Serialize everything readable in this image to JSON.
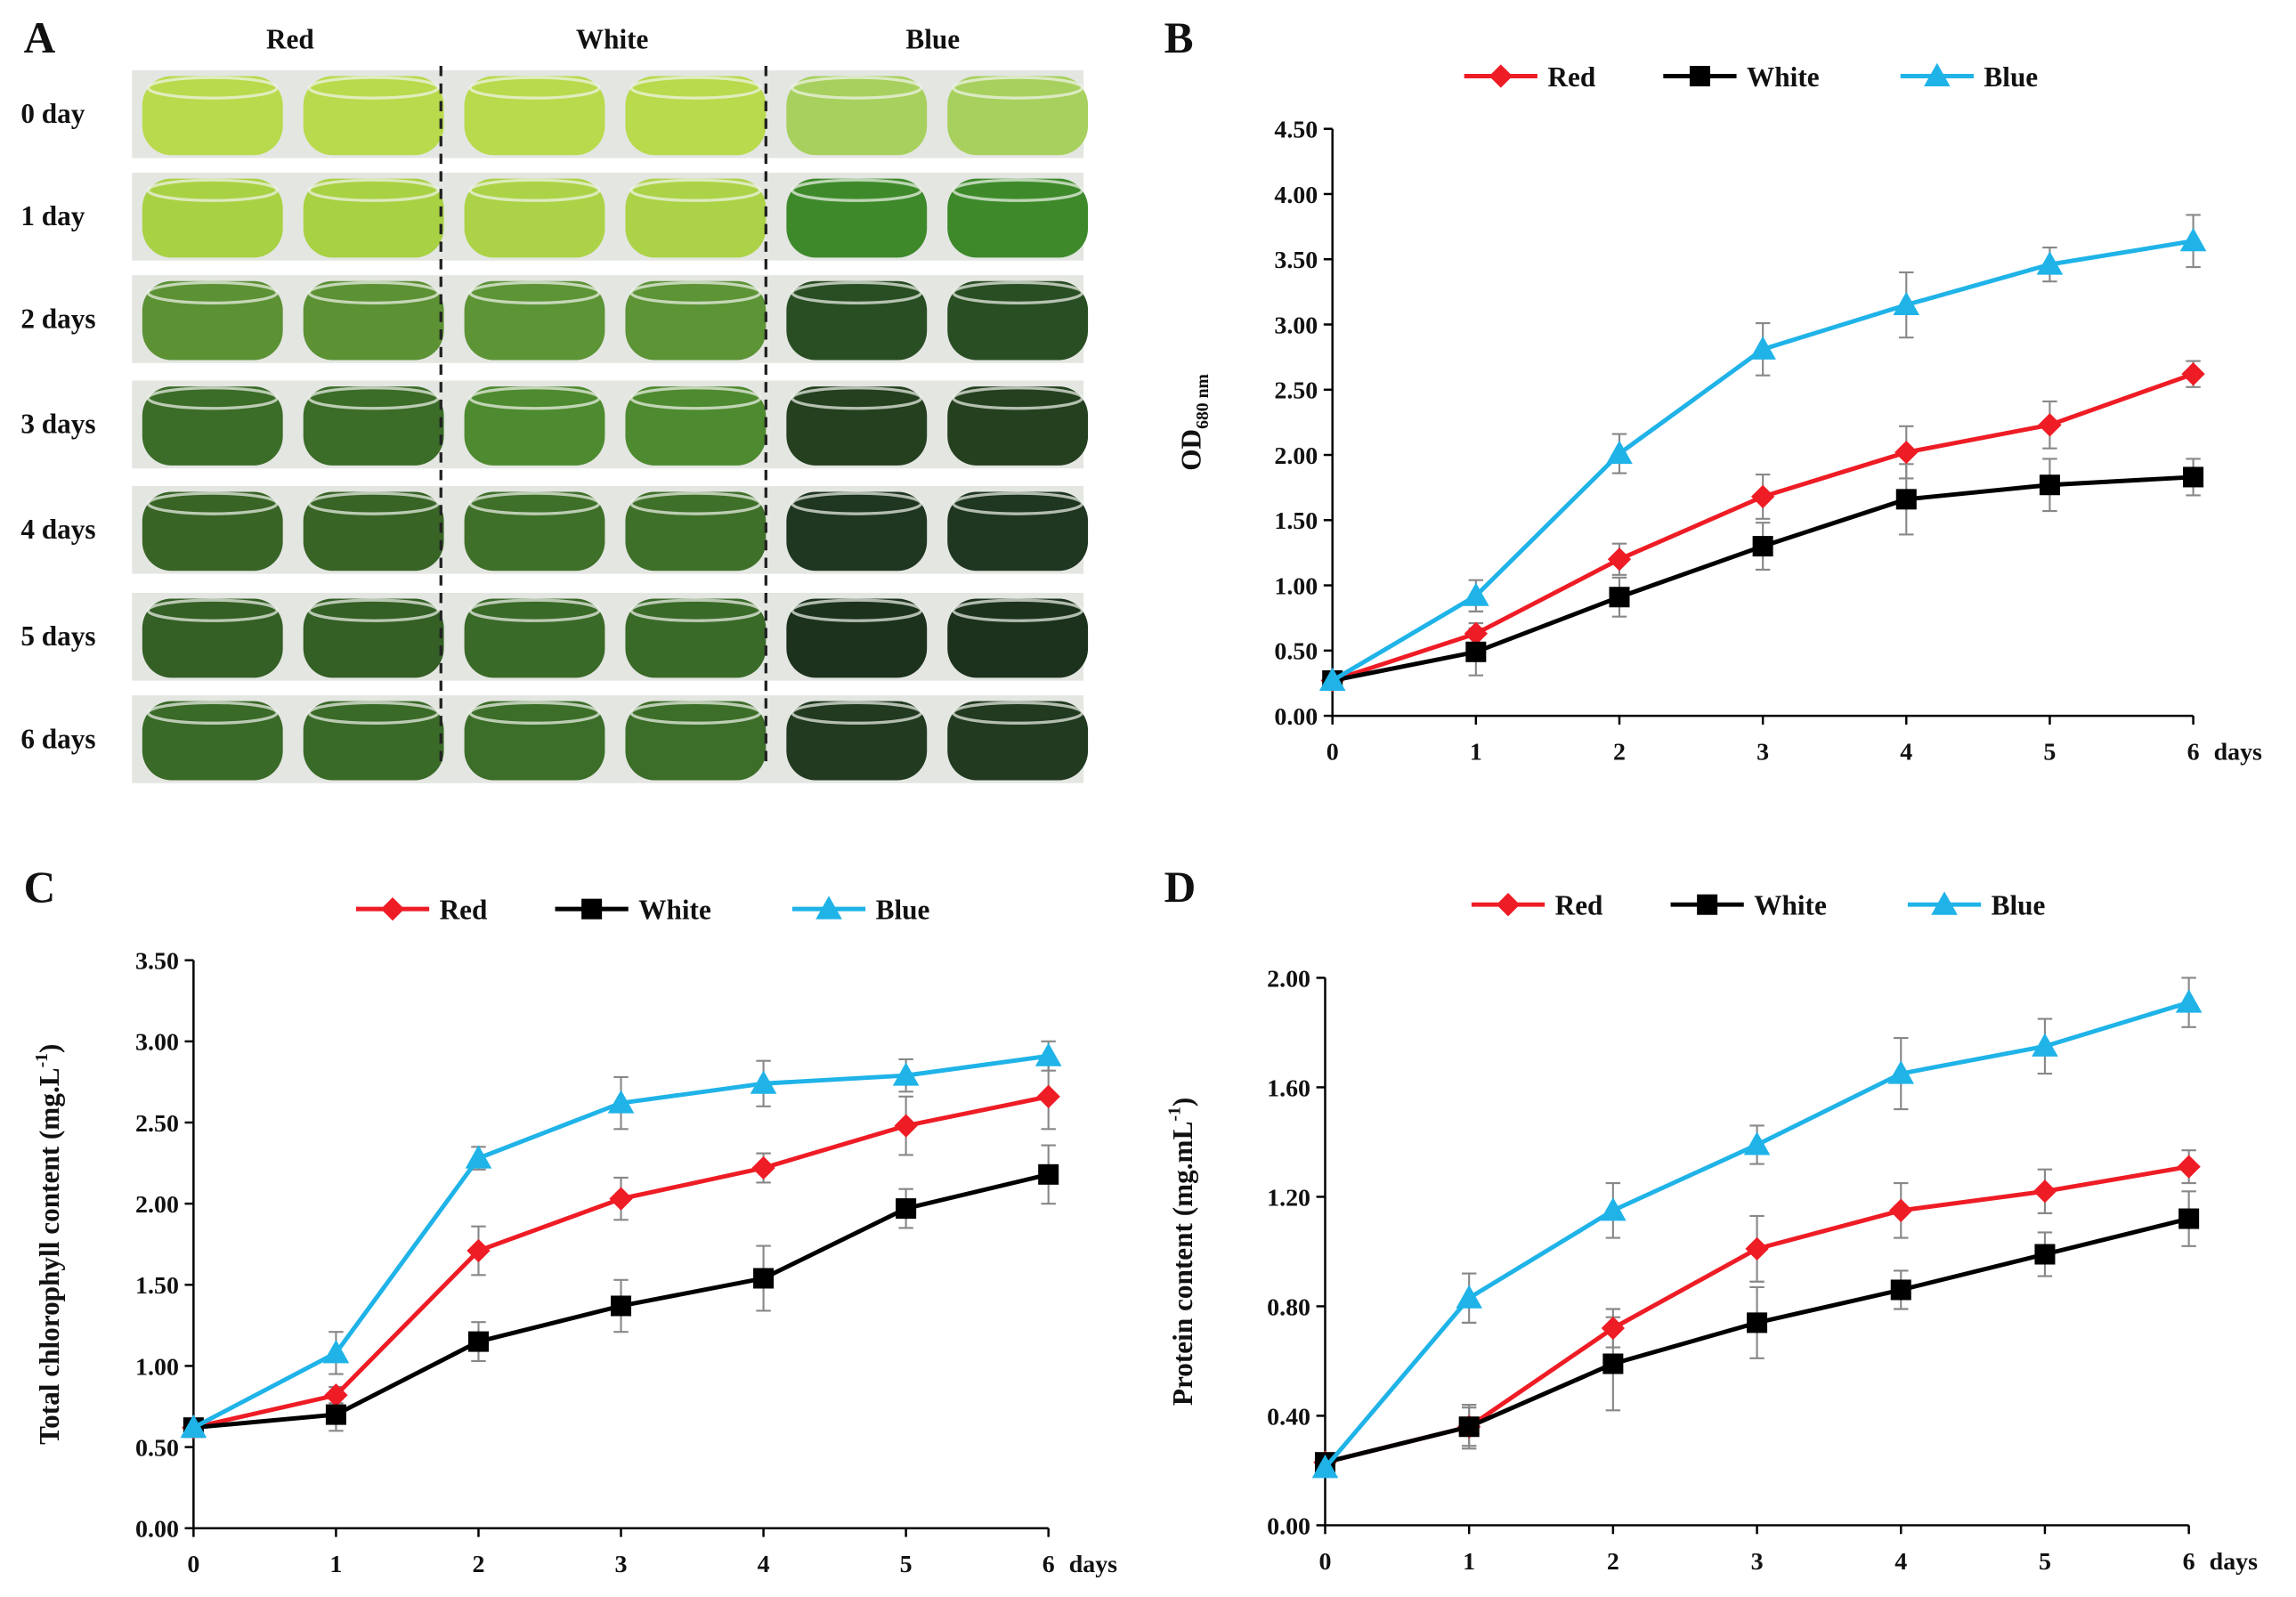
{
  "photo_panel": {
    "label": "A",
    "columns": [
      "Red",
      "White",
      "Blue"
    ],
    "rows": [
      "0 day",
      "1 day",
      "2 days",
      "3 days",
      "4 days",
      "5 days",
      "6 days"
    ]
  },
  "chart_data": [
    {
      "type": "line",
      "panel_label": "B",
      "ylabel": "OD",
      "ylabel_sub": "680 nm",
      "xlabel": "days",
      "legend": "top",
      "x": [
        0,
        1,
        2,
        3,
        4,
        5,
        6
      ],
      "xlim": [
        0,
        6
      ],
      "xticks": [
        0,
        1,
        2,
        3,
        4,
        5,
        6
      ],
      "ylim": [
        0,
        4.5
      ],
      "yticks": [
        {
          "value": 0,
          "label": "0.00"
        },
        {
          "value": 0.5,
          "label": "0.50"
        },
        {
          "value": 1,
          "label": "1.00"
        },
        {
          "value": 1.5,
          "label": "1.50"
        },
        {
          "value": 2,
          "label": "2.00"
        },
        {
          "value": 2.5,
          "label": "2.50"
        },
        {
          "value": 3,
          "label": "3.00"
        },
        {
          "value": 3.5,
          "label": "3.50"
        },
        {
          "value": 4,
          "label": "4.00"
        },
        {
          "value": 4.5,
          "label": "4.50"
        }
      ],
      "series": [
        {
          "name": "Red",
          "color": "#ee1c25",
          "marker": "diamond",
          "values": [
            0.27,
            0.63,
            1.2,
            1.68,
            2.02,
            2.23,
            2.62
          ],
          "errors": [
            0.03,
            0.08,
            0.12,
            0.17,
            0.2,
            0.18,
            0.1
          ]
        },
        {
          "name": "White",
          "color": "#000000",
          "marker": "square",
          "values": [
            0.27,
            0.49,
            0.91,
            1.3,
            1.66,
            1.77,
            1.83
          ],
          "errors": [
            0.03,
            0.18,
            0.15,
            0.18,
            0.27,
            0.2,
            0.14
          ]
        },
        {
          "name": "Blue",
          "color": "#1fb3e8",
          "marker": "triangle",
          "values": [
            0.27,
            0.92,
            2.01,
            2.81,
            3.15,
            3.46,
            3.64
          ],
          "errors": [
            0.03,
            0.12,
            0.15,
            0.2,
            0.25,
            0.13,
            0.2
          ]
        }
      ]
    },
    {
      "type": "line",
      "panel_label": "C",
      "ylabel": "Total chlorophyll content (mg.L",
      "ylabel_sup": "-1",
      "ylabel_end": ")",
      "xlabel": "days",
      "legend": "top",
      "x": [
        0,
        1,
        2,
        3,
        4,
        5,
        6
      ],
      "xlim": [
        0,
        6
      ],
      "xticks": [
        0,
        1,
        2,
        3,
        4,
        5,
        6
      ],
      "ylim": [
        0,
        3.5
      ],
      "yticks": [
        {
          "value": 0,
          "label": "0.00"
        },
        {
          "value": 0.5,
          "label": "0.50"
        },
        {
          "value": 1,
          "label": "1.00"
        },
        {
          "value": 1.5,
          "label": "1.50"
        },
        {
          "value": 2,
          "label": "2.00"
        },
        {
          "value": 2.5,
          "label": "2.50"
        },
        {
          "value": 3,
          "label": "3.00"
        },
        {
          "value": 3.5,
          "label": "3.50"
        }
      ],
      "series": [
        {
          "name": "Red",
          "color": "#ee1c25",
          "marker": "diamond",
          "values": [
            0.62,
            0.82,
            1.71,
            2.03,
            2.22,
            2.48,
            2.66
          ],
          "errors": [
            0.05,
            0.05,
            0.15,
            0.13,
            0.09,
            0.18,
            0.2
          ]
        },
        {
          "name": "White",
          "color": "#000000",
          "marker": "square",
          "values": [
            0.62,
            0.7,
            1.15,
            1.37,
            1.54,
            1.97,
            2.18
          ],
          "errors": [
            0.05,
            0.1,
            0.12,
            0.16,
            0.2,
            0.12,
            0.18
          ]
        },
        {
          "name": "Blue",
          "color": "#1fb3e8",
          "marker": "triangle",
          "values": [
            0.62,
            1.08,
            2.28,
            2.62,
            2.74,
            2.79,
            2.91
          ],
          "errors": [
            0.05,
            0.13,
            0.07,
            0.16,
            0.14,
            0.1,
            0.09
          ]
        }
      ]
    },
    {
      "type": "line",
      "panel_label": "D",
      "ylabel": "Protein content (mg.mL",
      "ylabel_sup": "-1",
      "ylabel_end": ")",
      "xlabel": "days",
      "legend": "top",
      "x": [
        0,
        1,
        2,
        3,
        4,
        5,
        6
      ],
      "xlim": [
        0,
        6
      ],
      "xticks": [
        0,
        1,
        2,
        3,
        4,
        5,
        6
      ],
      "ylim": [
        0,
        2
      ],
      "yticks": [
        {
          "value": 0,
          "label": "0.00"
        },
        {
          "value": 0.4,
          "label": "0.40"
        },
        {
          "value": 0.8,
          "label": "0.80"
        },
        {
          "value": 1.2,
          "label": "1.20"
        },
        {
          "value": 1.6,
          "label": "1.60"
        },
        {
          "value": 2,
          "label": "2.00"
        }
      ],
      "series": [
        {
          "name": "Red",
          "color": "#ee1c25",
          "marker": "diamond",
          "values": [
            0.23,
            0.36,
            0.72,
            1.01,
            1.15,
            1.22,
            1.31
          ],
          "errors": [
            0.03,
            0.08,
            0.07,
            0.12,
            0.1,
            0.08,
            0.06
          ]
        },
        {
          "name": "White",
          "color": "#000000",
          "marker": "square",
          "values": [
            0.23,
            0.36,
            0.59,
            0.74,
            0.86,
            0.99,
            1.12
          ],
          "errors": [
            0.03,
            0.07,
            0.17,
            0.13,
            0.07,
            0.08,
            0.1
          ]
        },
        {
          "name": "Blue",
          "color": "#1fb3e8",
          "marker": "triangle",
          "values": [
            0.21,
            0.83,
            1.15,
            1.39,
            1.65,
            1.75,
            1.91
          ],
          "errors": [
            0.03,
            0.09,
            0.1,
            0.07,
            0.13,
            0.1,
            0.09
          ]
        }
      ]
    }
  ]
}
